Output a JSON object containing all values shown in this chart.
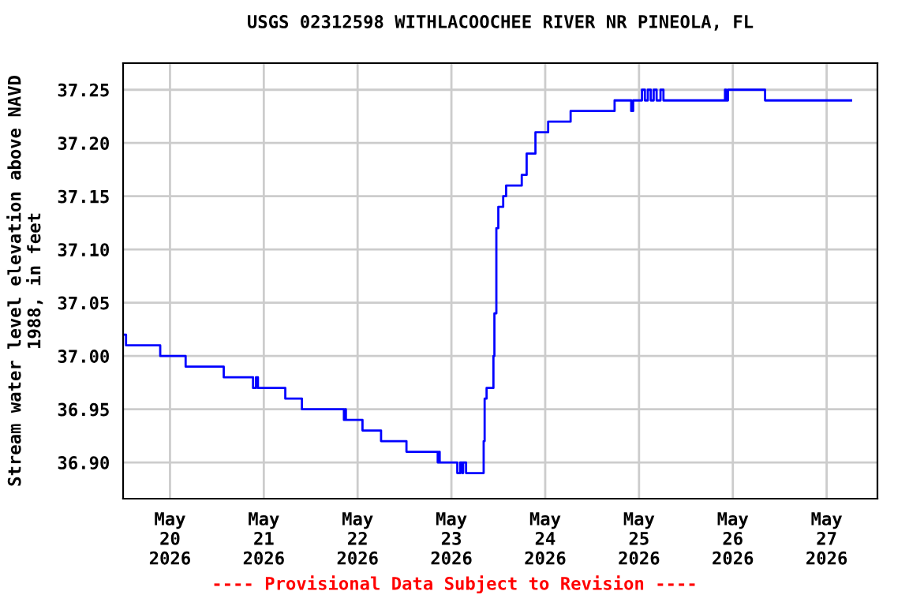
{
  "chart_data": {
    "type": "step",
    "title": "USGS 02312598 WITHLACOOCHEE RIVER NR PINEOLA, FL",
    "ylabel": "Stream water level elevation above NAVD\n1988, in feet",
    "annotations": [
      "---- Provisional Data Subject to Revision ----"
    ],
    "x": [
      "2026-05-19T12:00",
      "2026-05-19T12:45",
      "2026-05-19T21:30",
      "2026-05-20T04:00",
      "2026-05-20T13:45",
      "2026-05-20T21:15",
      "2026-05-20T22:00",
      "2026-05-20T22:30",
      "2026-05-21T05:30",
      "2026-05-21T09:45",
      "2026-05-21T20:30",
      "2026-05-21T20:45",
      "2026-05-21T21:00",
      "2026-05-22T01:15",
      "2026-05-22T06:00",
      "2026-05-22T12:30",
      "2026-05-22T20:30",
      "2026-05-22T20:45",
      "2026-05-22T21:00",
      "2026-05-23T01:30",
      "2026-05-23T02:15",
      "2026-05-23T02:45",
      "2026-05-23T03:00",
      "2026-05-23T03:45",
      "2026-05-23T08:15",
      "2026-05-23T08:30",
      "2026-05-23T09:00",
      "2026-05-23T10:45",
      "2026-05-23T11:00",
      "2026-05-23T11:30",
      "2026-05-23T12:00",
      "2026-05-23T13:15",
      "2026-05-23T14:00",
      "2026-05-23T18:00",
      "2026-05-23T19:15",
      "2026-05-23T21:30",
      "2026-05-24T00:45",
      "2026-05-24T06:30",
      "2026-05-24T17:45",
      "2026-05-24T22:00",
      "2026-05-24T22:30",
      "2026-05-25T00:45",
      "2026-05-25T01:30",
      "2026-05-25T02:15",
      "2026-05-25T03:00",
      "2026-05-25T03:45",
      "2026-05-25T04:30",
      "2026-05-25T05:30",
      "2026-05-25T06:15",
      "2026-05-25T22:00",
      "2026-05-25T22:15",
      "2026-05-25T22:45",
      "2026-05-26T08:15",
      "2026-05-26T09:00",
      "2026-05-27T06:15"
    ],
    "series": [
      {
        "color": "#0000ff",
        "values": [
          37.02,
          37.01,
          37.0,
          36.99,
          36.98,
          36.97,
          36.98,
          36.97,
          36.96,
          36.95,
          36.94,
          36.95,
          36.94,
          36.93,
          36.92,
          36.91,
          36.9,
          36.91,
          36.9,
          36.89,
          36.9,
          36.89,
          36.9,
          36.89,
          36.92,
          36.96,
          36.97,
          37.0,
          37.04,
          37.12,
          37.14,
          37.15,
          37.16,
          37.17,
          37.19,
          37.21,
          37.22,
          37.23,
          37.24,
          37.23,
          37.24,
          37.25,
          37.24,
          37.25,
          37.24,
          37.25,
          37.24,
          37.25,
          37.24,
          37.25,
          37.24,
          37.25,
          37.24,
          37.24,
          37.24
        ]
      }
    ],
    "xlim": [
      "2026-05-19T12:00",
      "2026-05-27T13:00"
    ],
    "ylim": [
      36.866,
      37.275
    ],
    "xticks": [
      {
        "value": "2026-05-20",
        "label": "May\n20\n2026"
      },
      {
        "value": "2026-05-21",
        "label": "May\n21\n2026"
      },
      {
        "value": "2026-05-22",
        "label": "May\n22\n2026"
      },
      {
        "value": "2026-05-23",
        "label": "May\n23\n2026"
      },
      {
        "value": "2026-05-24",
        "label": "May\n24\n2026"
      },
      {
        "value": "2026-05-25",
        "label": "May\n25\n2026"
      },
      {
        "value": "2026-05-26",
        "label": "May\n26\n2026"
      },
      {
        "value": "2026-05-27",
        "label": "May\n27\n2026"
      }
    ],
    "yticks": [
      {
        "value": 36.9,
        "label": "36.90"
      },
      {
        "value": 36.95,
        "label": "36.95"
      },
      {
        "value": 37.0,
        "label": "37.00"
      },
      {
        "value": 37.05,
        "label": "37.05"
      },
      {
        "value": 37.1,
        "label": "37.10"
      },
      {
        "value": 37.15,
        "label": "37.15"
      },
      {
        "value": 37.2,
        "label": "37.20"
      },
      {
        "value": 37.25,
        "label": "37.25"
      }
    ],
    "grid": true,
    "line_style": "solid"
  }
}
